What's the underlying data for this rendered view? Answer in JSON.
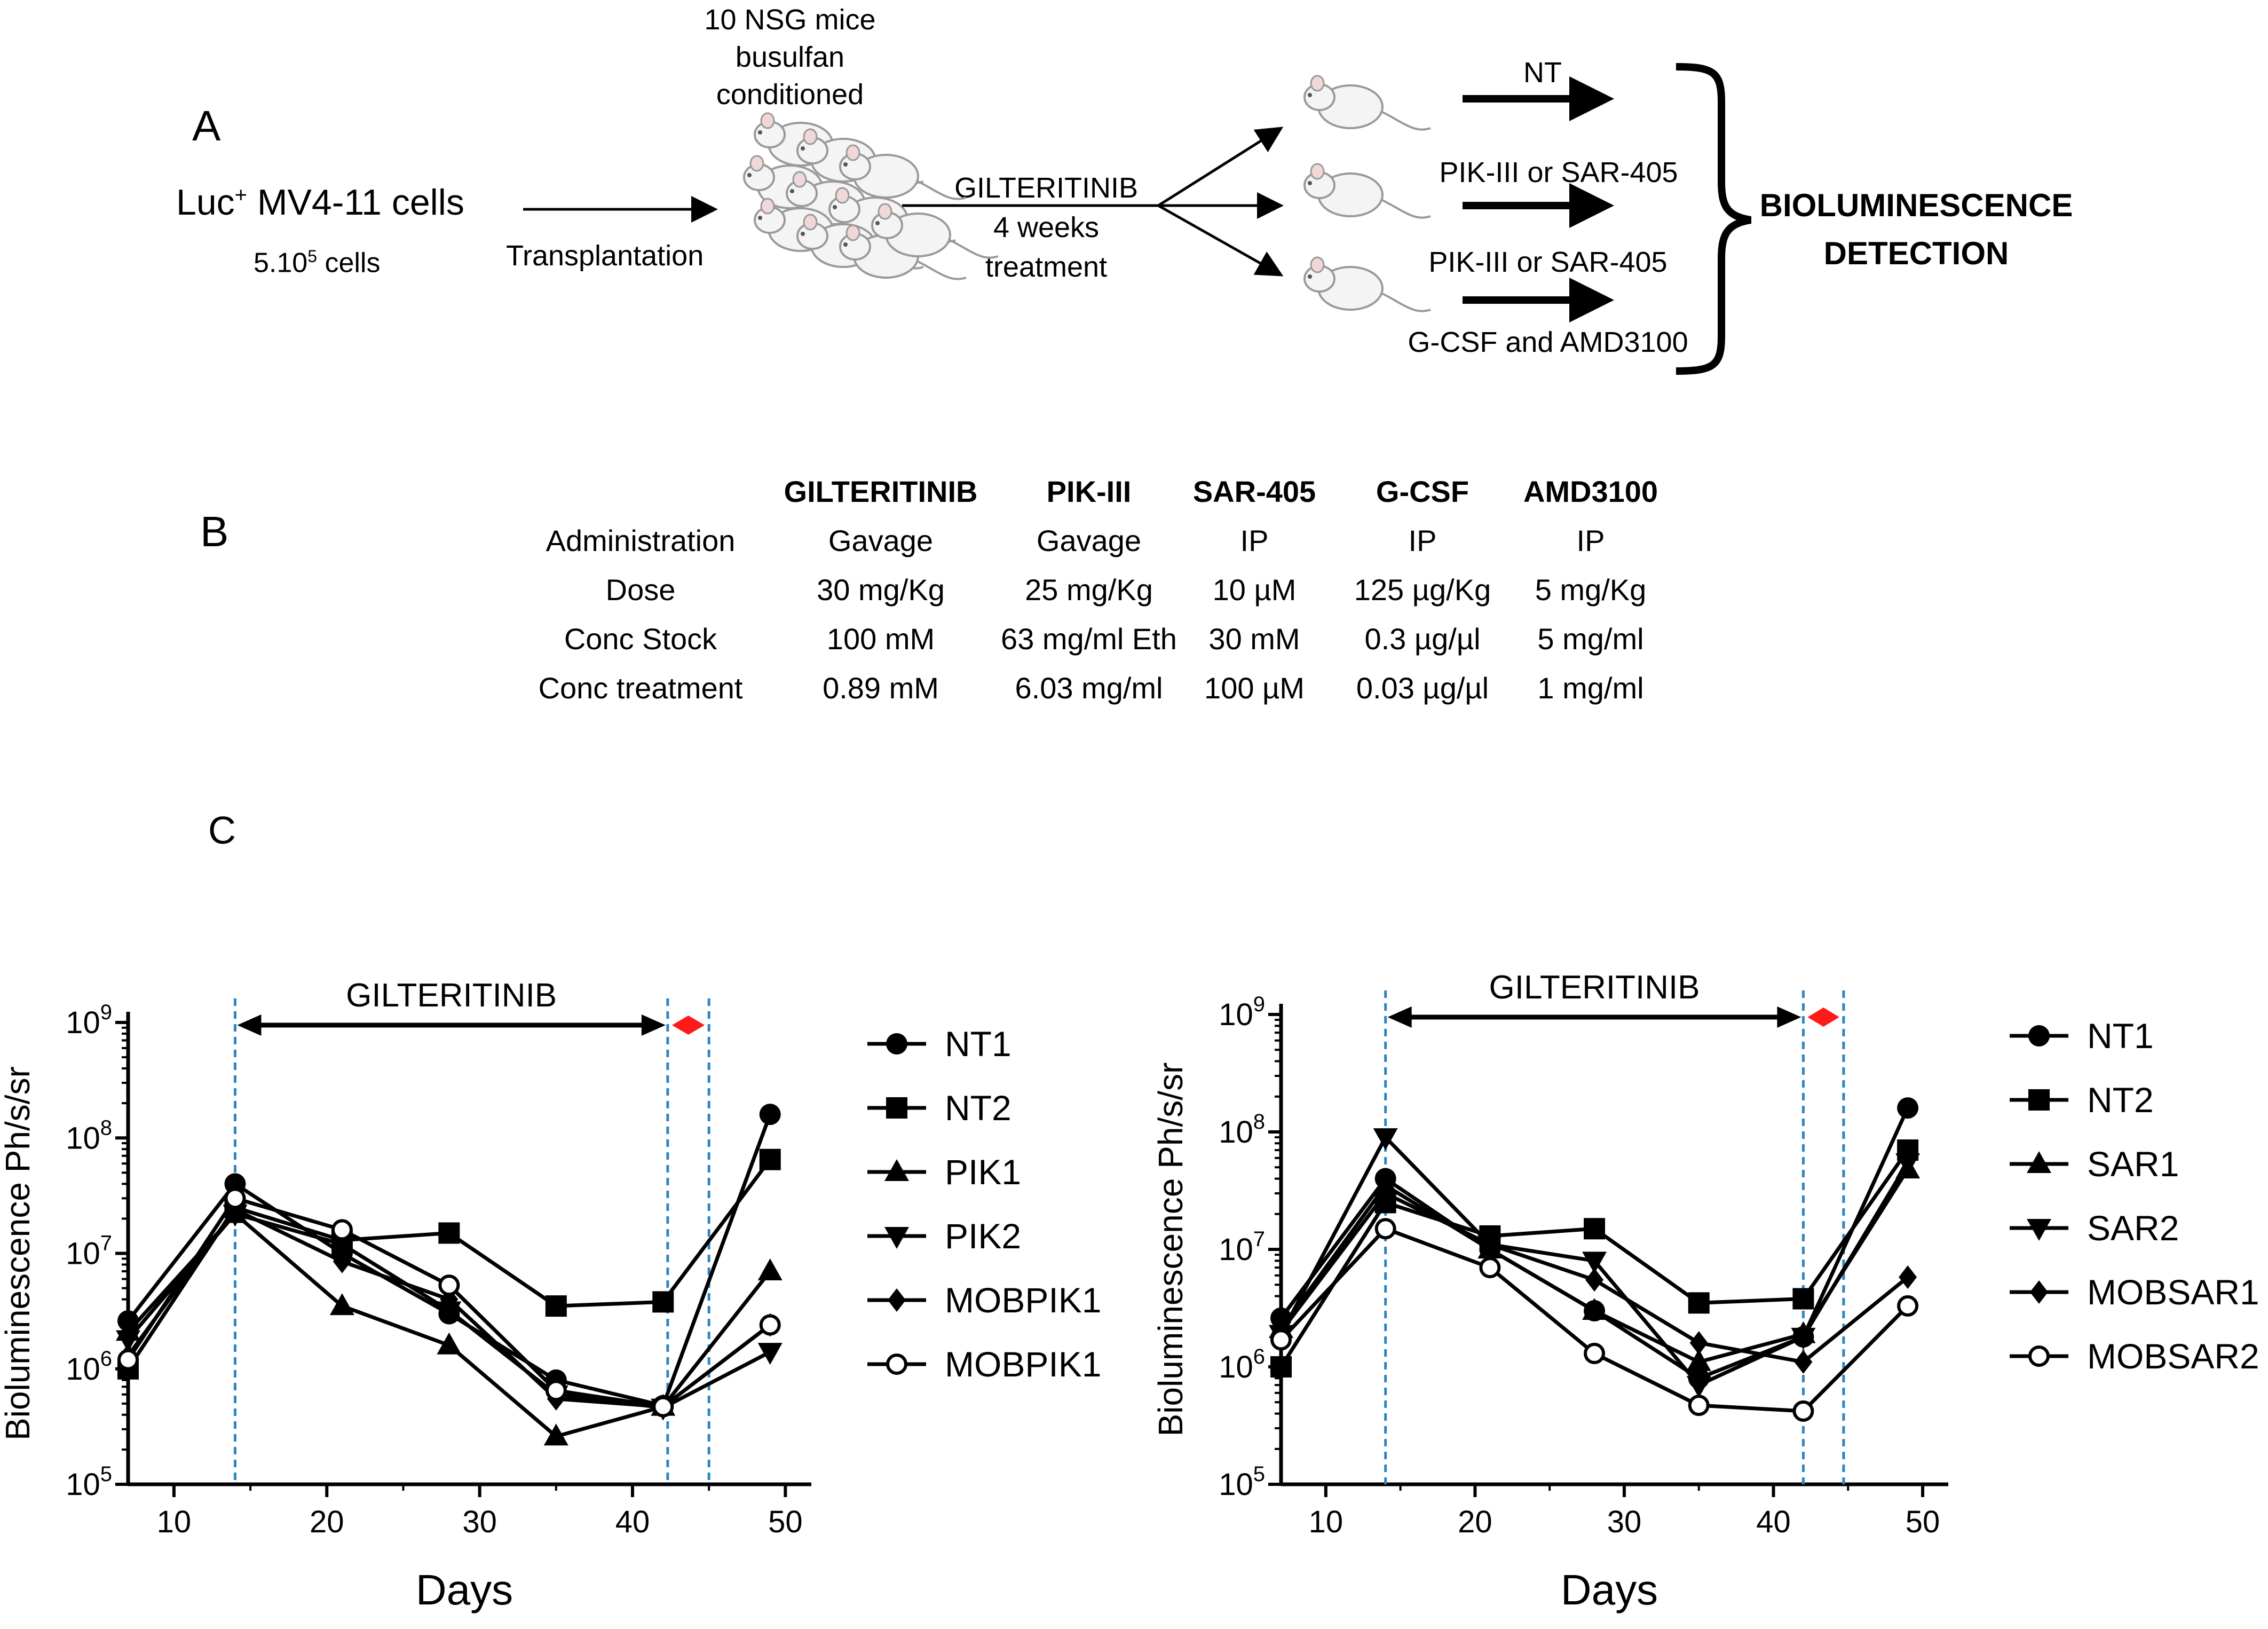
{
  "panel_a": {
    "letter": "A",
    "cells_label": "Luc",
    "cells_sup": "+",
    "cells_rest": " MV4-11 cells",
    "cells_count_base": "5.10",
    "cells_count_sup": "5",
    "cells_count_rest": " cells",
    "transplant_label": "Transplantation",
    "mice_line1": "10 NSG mice",
    "mice_line2": "busulfan",
    "mice_line3": "conditioned",
    "treatment_line1": "GILTERITINIB",
    "treatment_line2": "4 weeks",
    "treatment_line3": "treatment",
    "arm1_label": "NT",
    "arm2_label": "PIK-III or SAR-405",
    "arm3_label_top": "PIK-III or SAR-405",
    "arm3_label_bottom": "G-CSF and AMD3100",
    "detection_line1": "BIOLUMINESCENCE",
    "detection_line2": "DETECTION"
  },
  "panel_b": {
    "letter": "B",
    "headers": [
      "",
      "GILTERITINIB",
      "PIK-III",
      "SAR-405",
      "G-CSF",
      "AMD3100"
    ],
    "rows": [
      [
        "Administration",
        "Gavage",
        "Gavage",
        "IP",
        "IP",
        "IP"
      ],
      [
        "Dose",
        "30 mg/Kg",
        "25 mg/Kg",
        "10 µM",
        "125 µg/Kg",
        "5 mg/Kg"
      ],
      [
        "Conc Stock",
        "100  mM",
        "63 mg/ml Eth",
        "30 mM",
        "0.3 µg/µl",
        "5 mg/ml"
      ],
      [
        "Conc treatment",
        "0.89 mM",
        "6.03 mg/ml",
        "100 µM",
        "0.03 µg/µl",
        "1 mg/ml"
      ]
    ]
  },
  "panel_c": {
    "letter": "C"
  },
  "chart_data": [
    {
      "type": "line",
      "title": "",
      "annotation": "GILTERITINIB",
      "xlabel": "Days",
      "ylabel": "Bioluminescence Ph/s/sr",
      "yscale": "log",
      "xlim": [
        7,
        51
      ],
      "ylim": [
        100000,
        1000000000
      ],
      "xticks": [
        10,
        20,
        30,
        40,
        50
      ],
      "yticks": [
        {
          "value": 100000,
          "base": "10",
          "exp": "5"
        },
        {
          "value": 1000000,
          "base": "10",
          "exp": "6"
        },
        {
          "value": 10000000,
          "base": "10",
          "exp": "7"
        },
        {
          "value": 100000000,
          "base": "10",
          "exp": "8"
        },
        {
          "value": 1000000000,
          "base": "10",
          "exp": "9"
        }
      ],
      "treatment_window": [
        14,
        42
      ],
      "post_window": [
        42,
        45
      ],
      "vlines": [
        14,
        42.3,
        45
      ],
      "x": [
        7,
        14,
        21,
        28,
        35,
        42,
        49
      ],
      "series": [
        {
          "name": "NT1",
          "marker": "circle",
          "values": [
            2600000,
            40000000,
            10000000,
            3000000,
            800000,
            480000,
            160000000
          ]
        },
        {
          "name": "NT2",
          "marker": "square",
          "values": [
            1000000,
            25000000,
            13000000,
            15000000,
            3500000,
            3800000,
            65000000
          ]
        },
        {
          "name": "PIK1",
          "marker": "triangle-up",
          "values": [
            2100000,
            22000000,
            3500000,
            1600000,
            260000,
            470000,
            7000000
          ]
        },
        {
          "name": "PIK2",
          "marker": "triangle-down",
          "values": [
            1800000,
            22000000,
            12000000,
            3200000,
            600000,
            460000,
            1400000
          ]
        },
        {
          "name": "MOBPIK1",
          "marker": "diamond",
          "values": [
            1300000,
            24000000,
            8500000,
            4000000,
            550000,
            470000,
            2400000
          ]
        },
        {
          "name": "MOBPIK1",
          "marker": "circle-open",
          "values": [
            1200000,
            30000000,
            16000000,
            5300000,
            650000,
            470000,
            2400000
          ]
        }
      ]
    },
    {
      "type": "line",
      "title": "",
      "annotation": "GILTERITINIB",
      "xlabel": "Days",
      "ylabel": "Bioluminescence Ph/s/sr",
      "yscale": "log",
      "xlim": [
        7,
        51
      ],
      "ylim": [
        100000,
        1000000000
      ],
      "xticks": [
        10,
        20,
        30,
        40,
        50
      ],
      "yticks": [
        {
          "value": 100000,
          "base": "10",
          "exp": "5"
        },
        {
          "value": 1000000,
          "base": "10",
          "exp": "6"
        },
        {
          "value": 10000000,
          "base": "10",
          "exp": "7"
        },
        {
          "value": 100000000,
          "base": "10",
          "exp": "8"
        },
        {
          "value": 1000000000,
          "base": "10",
          "exp": "9"
        }
      ],
      "treatment_window": [
        14,
        42
      ],
      "post_window": [
        42,
        45
      ],
      "vlines": [
        14,
        42,
        44.7
      ],
      "x": [
        7,
        14,
        21,
        28,
        35,
        42,
        49
      ],
      "series": [
        {
          "name": "NT1",
          "marker": "circle",
          "values": [
            2600000,
            40000000,
            10000000,
            3000000,
            800000,
            1800000,
            160000000
          ]
        },
        {
          "name": "NT2",
          "marker": "square",
          "values": [
            1000000,
            25000000,
            13000000,
            15000000,
            3500000,
            3800000,
            70000000
          ]
        },
        {
          "name": "SAR1",
          "marker": "triangle-up",
          "values": [
            2100000,
            35000000,
            10000000,
            3000000,
            1100000,
            1900000,
            48000000
          ]
        },
        {
          "name": "SAR2",
          "marker": "triangle-down",
          "values": [
            1900000,
            90000000,
            11000000,
            8000000,
            700000,
            1800000,
            55000000
          ]
        },
        {
          "name": "MOBSAR1",
          "marker": "diamond",
          "values": [
            2000000,
            30000000,
            11000000,
            5500000,
            1600000,
            1100000,
            5800000
          ]
        },
        {
          "name": "MOBSAR2",
          "marker": "circle-open",
          "values": [
            1700000,
            15000000,
            7000000,
            1300000,
            470000,
            420000,
            3300000
          ]
        }
      ]
    }
  ]
}
